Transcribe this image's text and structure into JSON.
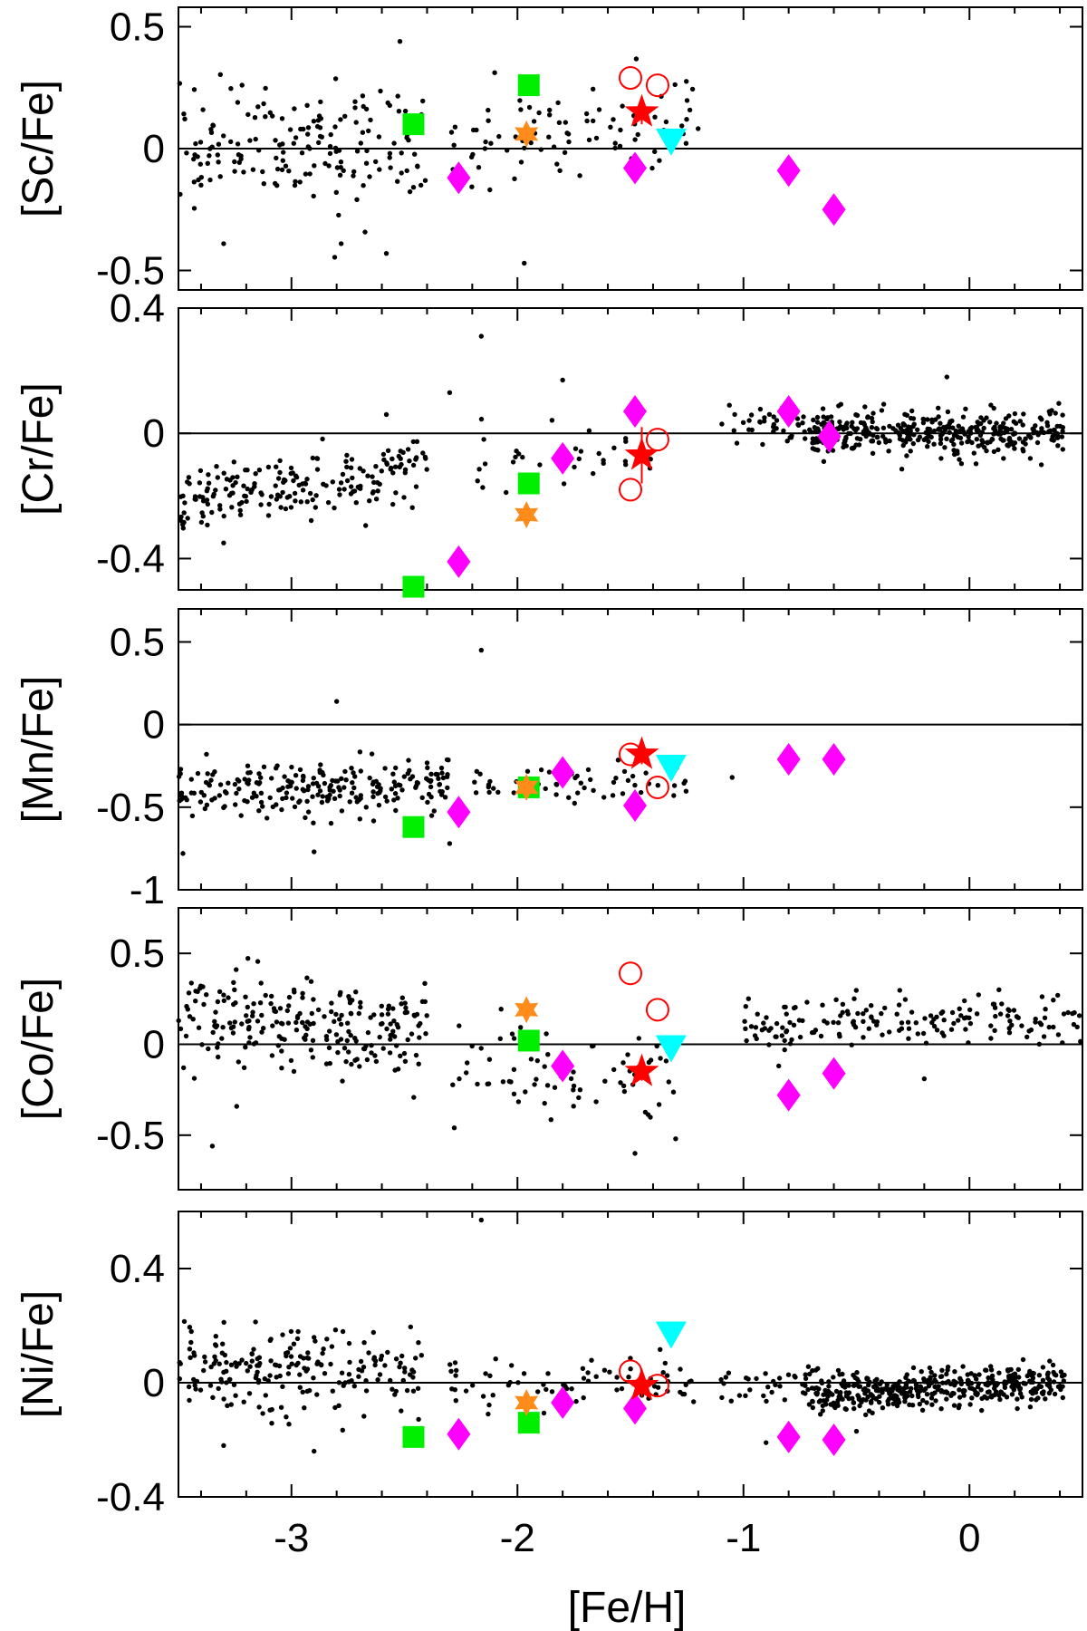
{
  "chart_data": {
    "type": "scatter",
    "xlabel": "[Fe/H]",
    "xlim": [
      -3.5,
      0.5
    ],
    "xticks": [
      -3,
      -2,
      -1,
      0
    ],
    "xtick_labels": [
      "-3",
      "-2",
      "-1",
      "0"
    ],
    "colors": {
      "field": "#000000",
      "program_star": "#ff0000",
      "open_circle": "#ff0000",
      "diamond": "#ff00ff",
      "square": "#00ee00",
      "orange_star": "#ff8c1a",
      "triangle": "#00ffff"
    },
    "panels": [
      {
        "id": "sc",
        "ylabel": "[Sc/Fe]",
        "ylim": [
          -0.58,
          0.58
        ],
        "yticks": [
          -0.5,
          0,
          0.5
        ],
        "ytick_labels": [
          "-0.5",
          "0",
          "0.5"
        ],
        "field": {
          "gen": true,
          "seed": 11,
          "segments": [
            {
              "x": [
                -3.5,
                -2.4
              ],
              "n": 170,
              "mean": 0.0,
              "slope": 0.05,
              "sd": 0.12
            },
            {
              "x": [
                -2.3,
                -1.2
              ],
              "n": 85,
              "mean": 0.07,
              "slope": 0.03,
              "sd": 0.1
            }
          ]
        },
        "outliers": [
          [
            -2.52,
            0.44
          ],
          [
            -1.97,
            -0.47
          ],
          [
            -2.58,
            -0.43
          ],
          [
            -3.3,
            -0.39
          ],
          [
            -2.78,
            -0.39
          ]
        ],
        "program_star": {
          "x": -1.45,
          "y": 0.15,
          "err": 0.05
        },
        "open_circles": [
          [
            -1.5,
            0.29
          ],
          [
            -1.38,
            0.26
          ]
        ],
        "diamonds": [
          [
            -2.26,
            -0.12
          ],
          [
            -1.48,
            -0.08
          ],
          [
            -0.8,
            -0.09
          ],
          [
            -0.6,
            -0.25
          ]
        ],
        "squares": [
          [
            -2.46,
            0.1
          ],
          [
            -1.95,
            0.26
          ]
        ],
        "orange_stars": [
          [
            -1.96,
            0.06
          ]
        ],
        "triangles": [
          [
            -1.32,
            0.03
          ]
        ]
      },
      {
        "id": "cr",
        "ylabel": "[Cr/Fe]",
        "ylim": [
          -0.5,
          0.4
        ],
        "yticks": [
          -0.4,
          0,
          0.4
        ],
        "ytick_labels": [
          "-0.4",
          "0",
          "0.4"
        ],
        "field": {
          "gen": true,
          "seed": 23,
          "segments": [
            {
              "x": [
                -3.5,
                -2.4
              ],
              "n": 200,
              "mean": -0.17,
              "slope": 0.08,
              "sd": 0.05
            },
            {
              "x": [
                -2.2,
                -1.4
              ],
              "n": 35,
              "mean": -0.1,
              "slope": 0.05,
              "sd": 0.06
            },
            {
              "x": [
                -1.1,
                -0.7
              ],
              "n": 40,
              "mean": 0.02,
              "slope": 0.0,
              "sd": 0.03
            },
            {
              "x": [
                -0.7,
                0.42
              ],
              "n": 380,
              "mean": 0.0,
              "slope": 0.0,
              "sd": 0.035
            }
          ]
        },
        "outliers": [
          [
            -2.16,
            0.31
          ],
          [
            -1.8,
            0.17
          ],
          [
            -2.3,
            0.13
          ],
          [
            -2.58,
            0.06
          ],
          [
            -3.3,
            -0.35
          ],
          [
            -0.1,
            0.18
          ]
        ],
        "program_star": {
          "x": -1.45,
          "y": -0.07,
          "err": 0.09
        },
        "open_circles": [
          [
            -1.5,
            -0.18
          ],
          [
            -1.38,
            -0.02
          ]
        ],
        "diamonds": [
          [
            -2.26,
            -0.41
          ],
          [
            -1.8,
            -0.08
          ],
          [
            -1.48,
            0.07
          ],
          [
            -0.8,
            0.07
          ],
          [
            -0.62,
            -0.01
          ]
        ],
        "squares": [
          [
            -2.46,
            -0.49
          ],
          [
            -1.95,
            -0.16
          ]
        ],
        "orange_stars": [
          [
            -1.96,
            -0.26
          ]
        ],
        "triangles": []
      },
      {
        "id": "mn",
        "ylabel": "[Mn/Fe]",
        "ylim": [
          -1.0,
          0.7
        ],
        "yticks": [
          -1,
          -0.5,
          0,
          0.5
        ],
        "ytick_labels": [
          "-1",
          "-0.5",
          "0",
          "0.5"
        ],
        "field": {
          "gen": true,
          "seed": 37,
          "segments": [
            {
              "x": [
                -3.5,
                -2.3
              ],
              "n": 230,
              "mean": -0.38,
              "slope": 0.05,
              "sd": 0.08
            },
            {
              "x": [
                -2.2,
                -1.25
              ],
              "n": 55,
              "mean": -0.36,
              "slope": 0.0,
              "sd": 0.06
            }
          ]
        },
        "outliers": [
          [
            -2.16,
            0.45
          ],
          [
            -2.8,
            0.14
          ],
          [
            -3.48,
            -0.78
          ],
          [
            -2.9,
            -0.77
          ],
          [
            -1.05,
            -0.32
          ],
          [
            -2.3,
            -0.72
          ]
        ],
        "program_star": {
          "x": -1.45,
          "y": -0.18,
          "err": 0.06
        },
        "open_circles": [
          [
            -1.5,
            -0.18
          ],
          [
            -1.38,
            -0.38
          ]
        ],
        "diamonds": [
          [
            -2.26,
            -0.53
          ],
          [
            -1.8,
            -0.29
          ],
          [
            -1.48,
            -0.49
          ],
          [
            -0.8,
            -0.21
          ],
          [
            -0.6,
            -0.21
          ]
        ],
        "squares": [
          [
            -2.46,
            -0.62
          ],
          [
            -1.95,
            -0.38
          ]
        ],
        "orange_stars": [
          [
            -1.96,
            -0.38
          ]
        ],
        "triangles": [
          [
            -1.32,
            -0.26
          ]
        ]
      },
      {
        "id": "co",
        "ylabel": "[Co/Fe]",
        "ylim": [
          -0.8,
          0.75
        ],
        "yticks": [
          -0.5,
          0,
          0.5
        ],
        "ytick_labels": [
          "-0.5",
          "0",
          "0.5"
        ],
        "field": {
          "gen": true,
          "seed": 41,
          "segments": [
            {
              "x": [
                -3.5,
                -2.4
              ],
              "n": 230,
              "mean": 0.1,
              "slope": -0.12,
              "sd": 0.13
            },
            {
              "x": [
                -2.3,
                -1.3
              ],
              "n": 75,
              "mean": -0.15,
              "slope": -0.05,
              "sd": 0.14
            },
            {
              "x": [
                -1.0,
                0.5
              ],
              "n": 170,
              "mean": 0.14,
              "slope": 0.02,
              "sd": 0.08
            }
          ]
        },
        "outliers": [
          [
            -3.35,
            -0.56
          ],
          [
            -1.3,
            -0.52
          ],
          [
            -1.48,
            -0.6
          ],
          [
            -0.2,
            -0.19
          ]
        ],
        "program_star": {
          "x": -1.45,
          "y": -0.15,
          "err": 0.05
        },
        "open_circles": [
          [
            -1.5,
            0.39
          ],
          [
            -1.38,
            0.19
          ]
        ],
        "diamonds": [
          [
            -1.8,
            -0.12
          ],
          [
            -0.8,
            -0.28
          ],
          [
            -0.6,
            -0.16
          ]
        ],
        "squares": [
          [
            -1.95,
            0.02
          ]
        ],
        "orange_stars": [
          [
            -1.96,
            0.19
          ]
        ],
        "triangles": [
          [
            -1.32,
            -0.02
          ]
        ]
      },
      {
        "id": "ni",
        "ylabel": "[Ni/Fe]",
        "ylim": [
          -0.4,
          0.6
        ],
        "yticks": [
          -0.4,
          0,
          0.4
        ],
        "ytick_labels": [
          "-0.4",
          "0",
          "0.4"
        ],
        "field": {
          "gen": true,
          "seed": 53,
          "segments": [
            {
              "x": [
                -3.5,
                -2.4
              ],
              "n": 200,
              "mean": 0.04,
              "slope": -0.03,
              "sd": 0.07
            },
            {
              "x": [
                -2.3,
                -1.2
              ],
              "n": 70,
              "mean": 0.0,
              "slope": 0.0,
              "sd": 0.05
            },
            {
              "x": [
                -1.1,
                -0.7
              ],
              "n": 35,
              "mean": -0.01,
              "slope": 0.0,
              "sd": 0.04
            },
            {
              "x": [
                -0.7,
                0.42
              ],
              "n": 420,
              "mean": -0.02,
              "slope": 0.04,
              "sd": 0.035
            }
          ]
        },
        "outliers": [
          [
            -2.16,
            0.57
          ],
          [
            -3.3,
            -0.22
          ],
          [
            -2.9,
            -0.24
          ],
          [
            -0.9,
            -0.21
          ],
          [
            -0.5,
            -0.17
          ]
        ],
        "program_star": {
          "x": -1.45,
          "y": -0.01,
          "err": 0.04
        },
        "open_circles": [
          [
            -1.5,
            0.04
          ],
          [
            -1.38,
            -0.01
          ]
        ],
        "diamonds": [
          [
            -2.26,
            -0.18
          ],
          [
            -1.8,
            -0.07
          ],
          [
            -1.48,
            -0.09
          ],
          [
            -0.8,
            -0.19
          ],
          [
            -0.6,
            -0.2
          ]
        ],
        "squares": [
          [
            -2.46,
            -0.19
          ],
          [
            -1.95,
            -0.14
          ]
        ],
        "orange_stars": [
          [
            -1.96,
            -0.07
          ]
        ],
        "triangles": [
          [
            -1.32,
            0.17
          ]
        ]
      }
    ]
  }
}
